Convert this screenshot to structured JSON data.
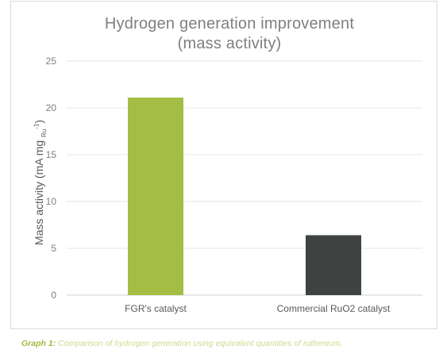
{
  "chart_data": {
    "type": "bar",
    "title_line1": "Hydrogen generation improvement",
    "title_line2": "(mass activity)",
    "ylabel_main": "Mass activity (mA mg",
    "ylabel_sub": "Ru",
    "ylabel_sup": "-1",
    "ylabel_close": ")",
    "categories": [
      "FGR's catalyst",
      "Commercial RuO2 catalyst"
    ],
    "values": [
      21.1,
      6.4
    ],
    "colors": [
      "#a4bd44",
      "#3e4240"
    ],
    "ylim": [
      0,
      25
    ],
    "yticks": [
      0,
      5,
      10,
      15,
      20,
      25
    ],
    "grid": true,
    "legend": "none"
  },
  "caption": {
    "tag": "Graph 1:",
    "text": " Comparison of hydrogen generation using equivalent quantities of ruthenium."
  }
}
